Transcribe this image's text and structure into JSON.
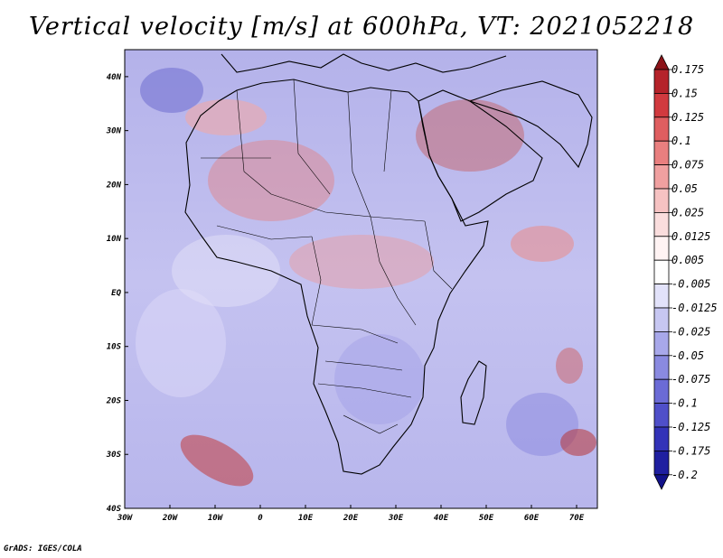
{
  "title": "Vertical velocity [m/s] at 600hPa, VT: 2021052218",
  "credit": "GrADS: IGES/COLA",
  "map": {
    "region": "Africa",
    "lon_range": [
      -30,
      75
    ],
    "lat_range": [
      -40,
      45
    ],
    "lon_ticks": [
      "30W",
      "20W",
      "10W",
      "0",
      "10E",
      "20E",
      "30E",
      "40E",
      "50E",
      "60E",
      "70E"
    ],
    "lat_ticks": [
      "40N",
      "30N",
      "20N",
      "10N",
      "EQ",
      "10S",
      "20S",
      "30S",
      "40S"
    ]
  },
  "colorbar": {
    "labels": [
      "0.175",
      "0.15",
      "0.125",
      "0.1",
      "0.075",
      "0.05",
      "0.025",
      "0.0125",
      "0.005",
      "-0.005",
      "-0.0125",
      "-0.025",
      "-0.05",
      "-0.075",
      "-0.1",
      "-0.125",
      "-0.175",
      "-0.2"
    ],
    "colors": [
      "#8c1419",
      "#b5232a",
      "#d13a3f",
      "#df5e60",
      "#e97f7f",
      "#f0a0a0",
      "#f6c2c2",
      "#fadddd",
      "#fff3f3",
      "#ffffff",
      "#e2e2fa",
      "#c7c7f2",
      "#a8a8ea",
      "#8a8ae0",
      "#6b6bd6",
      "#4f4fc9",
      "#3333b8",
      "#1f1fa0",
      "#12128a"
    ]
  }
}
